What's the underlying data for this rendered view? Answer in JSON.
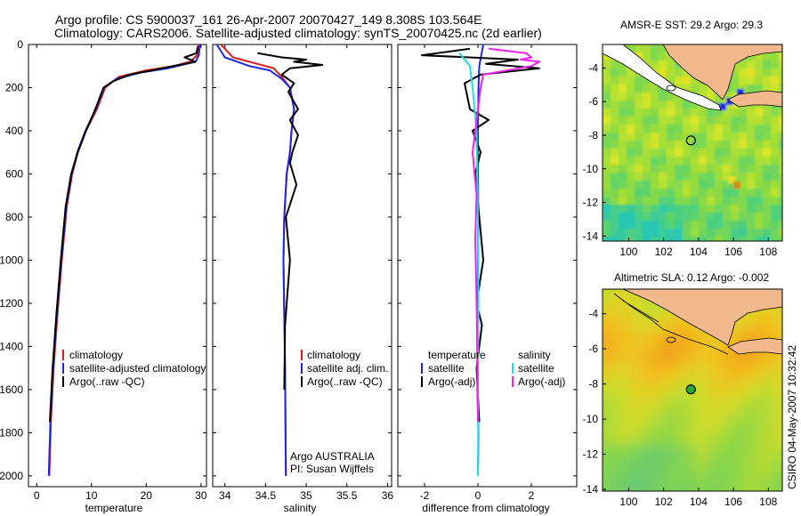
{
  "header": {
    "line1": "Argo profile: CS 5900037_161 26-Apr-2007 20070427_149 8.308S 103.564E",
    "line2": "Climatology: CARS2006. Satellite-adjusted climatology: synTS_20070425.nc (2d earlier)"
  },
  "side_label": "CSIRO 04-May-2007 10:32:42",
  "colors": {
    "climatology": "#dd1a1a",
    "satellite": "#1a28e6",
    "argo": "#000000",
    "sat_sal": "#22dddd",
    "argo_sal": "#ee22ee",
    "land": "#f2b98c"
  },
  "chart_data": [
    {
      "type": "line",
      "name": "temperature",
      "xlabel": "temperature",
      "xlim": [
        -1.5,
        31
      ],
      "xticks": [
        0,
        10,
        20,
        30
      ],
      "ylim": [
        2050,
        0
      ],
      "yticks": [
        0,
        200,
        400,
        600,
        800,
        1000,
        1200,
        1400,
        1600,
        1800,
        2000
      ],
      "legend": {
        "position": "lower-right",
        "entries": [
          "climatology",
          "satellite-adjusted climatology",
          "Argo(..raw -QC)"
        ]
      },
      "series": [
        {
          "name": "climatology",
          "color": "#dd1a1a",
          "x": [
            29.5,
            29.3,
            28,
            25,
            20,
            15,
            12.5,
            11,
            9,
            7.5,
            6.5,
            5.5,
            4.6,
            3.8,
            3.1,
            2.6,
            2.3
          ],
          "y": [
            0,
            50,
            80,
            100,
            120,
            150,
            200,
            300,
            400,
            500,
            600,
            750,
            1000,
            1250,
            1500,
            1750,
            2000
          ]
        },
        {
          "name": "satellite-adjusted climatology",
          "color": "#1a28e6",
          "x": [
            29.8,
            29.6,
            29,
            24,
            19,
            14.5,
            12.3,
            10.8,
            8.9,
            7.4,
            6.4,
            5.4,
            4.5,
            3.7,
            3.0,
            2.5,
            2.2
          ],
          "y": [
            0,
            50,
            80,
            110,
            130,
            160,
            200,
            300,
            400,
            500,
            600,
            750,
            1000,
            1250,
            1500,
            1750,
            2000
          ]
        },
        {
          "name": "Argo(..raw -QC)",
          "color": "#000000",
          "x": [
            29.4,
            29.2,
            27,
            29,
            25,
            21,
            17,
            14,
            12.2,
            10.7,
            9,
            7.5,
            6.3,
            5.3,
            4.4,
            3.6,
            2.9,
            2.4
          ],
          "y": [
            10,
            40,
            60,
            80,
            100,
            120,
            140,
            170,
            200,
            300,
            400,
            500,
            600,
            750,
            1000,
            1250,
            1500,
            1750
          ]
        }
      ]
    },
    {
      "type": "line",
      "name": "salinity",
      "xlabel": "salinity",
      "xlim": [
        33.85,
        36.05
      ],
      "xticks": [
        34,
        34.5,
        35,
        35.5,
        36
      ],
      "ylim": [
        2050,
        0
      ],
      "legend": {
        "position": "lower-right",
        "entries": [
          "climatology",
          "satellite adj. clim.",
          "Argo(..raw -QC)"
        ]
      },
      "annotation": [
        "Argo AUSTRALIA",
        "PI: Susan Wijffels"
      ],
      "series": [
        {
          "name": "climatology",
          "color": "#dd1a1a",
          "x": [
            33.95,
            34.1,
            34.4,
            34.6,
            34.7,
            34.8,
            34.85,
            34.82,
            34.8,
            34.76,
            34.73,
            34.72,
            34.74,
            34.75
          ],
          "y": [
            0,
            60,
            90,
            110,
            150,
            200,
            300,
            400,
            500,
            600,
            800,
            1000,
            1500,
            2000
          ]
        },
        {
          "name": "satellite adj. clim.",
          "color": "#1a28e6",
          "x": [
            33.9,
            34.0,
            34.3,
            34.55,
            34.7,
            34.8,
            34.85,
            34.82,
            34.8,
            34.76,
            34.73,
            34.72,
            34.74,
            34.75
          ],
          "y": [
            0,
            60,
            100,
            120,
            160,
            200,
            300,
            400,
            500,
            600,
            800,
            1000,
            1500,
            2000
          ]
        },
        {
          "name": "Argo(..raw -QC)",
          "color": "#000000",
          "x": [
            34.4,
            34.7,
            35.0,
            34.85,
            35.2,
            34.8,
            34.7,
            34.85,
            34.78,
            34.9,
            34.8,
            34.9,
            34.83,
            34.8,
            34.88,
            34.75,
            34.8,
            34.74,
            34.73
          ],
          "y": [
            40,
            60,
            70,
            80,
            95,
            110,
            140,
            180,
            220,
            300,
            350,
            420,
            500,
            550,
            650,
            800,
            1000,
            1300,
            1600
          ]
        }
      ]
    },
    {
      "type": "line",
      "name": "difference",
      "xlabel": "difference from climatology",
      "xlim": [
        -3.0,
        3.7
      ],
      "xticks": [
        -2,
        0,
        2
      ],
      "ylim": [
        2050,
        0
      ],
      "legend": {
        "position": "lower",
        "entries": [
          "temperature",
          "satellite",
          "Argo(-adj)",
          "salinity",
          "satellite",
          "Argo(-adj)"
        ]
      },
      "series": [
        {
          "name": "temperature satellite",
          "color": "#1a28e6",
          "x": [
            0.2,
            0.05,
            0.02,
            0,
            0.01,
            0,
            -0.02,
            0.02,
            0
          ],
          "y": [
            0,
            100,
            200,
            400,
            800,
            1200,
            1600,
            1800,
            2000
          ]
        },
        {
          "name": "temperature Argo(-adj)",
          "color": "#000000",
          "x": [
            -0.3,
            -2.1,
            1.5,
            0.3,
            2.3,
            0.1,
            -0.5,
            -0.4,
            -0.3,
            0.4,
            -0.2,
            0.1,
            -0.1,
            0.05,
            0.2,
            -0.05,
            0.15,
            -0.05,
            0.05
          ],
          "y": [
            20,
            50,
            70,
            90,
            110,
            140,
            180,
            240,
            300,
            350,
            400,
            500,
            600,
            800,
            1000,
            1200,
            1300,
            1500,
            1750
          ]
        },
        {
          "name": "salinity satellite",
          "color": "#22dddd",
          "x": [
            -0.7,
            -0.3,
            -0.2,
            -0.05,
            0,
            0.02,
            0,
            0.01,
            0
          ],
          "y": [
            40,
            100,
            200,
            400,
            800,
            1200,
            1600,
            1800,
            2000
          ]
        },
        {
          "name": "salinity Argo(-adj)",
          "color": "#ee22ee",
          "x": [
            0.4,
            1.8,
            2.0,
            1.6,
            2.3,
            2.0,
            0.2,
            0.1,
            0.0,
            -0.1,
            -0.2,
            -0.05,
            -0.1,
            -0.05,
            -0.02,
            0.0
          ],
          "y": [
            20,
            40,
            60,
            70,
            80,
            100,
            140,
            200,
            300,
            400,
            500,
            700,
            900,
            1200,
            1500,
            1750
          ]
        }
      ]
    },
    {
      "type": "heatmap",
      "name": "sst_map",
      "title": "AMSR-E SST: 29.2 Argo: 29.3",
      "xlim": [
        98.5,
        108.8
      ],
      "ylim": [
        -14.3,
        -2.6
      ],
      "xticks": [
        100,
        102,
        104,
        106,
        108
      ],
      "yticks": [
        -4,
        -6,
        -8,
        -10,
        -12,
        -14
      ],
      "marker": {
        "lon": 103.564,
        "lat": -8.308
      }
    },
    {
      "type": "heatmap",
      "name": "sla_map",
      "title": "Altimetric SLA: 0.12 Argo: -0.002",
      "xlim": [
        98.5,
        108.8
      ],
      "ylim": [
        -14.1,
        -2.6
      ],
      "xticks": [
        100,
        102,
        104,
        106,
        108
      ],
      "yticks": [
        -4,
        -6,
        -8,
        -10,
        -12,
        -14
      ],
      "marker": {
        "lon": 103.564,
        "lat": -8.308
      }
    }
  ]
}
